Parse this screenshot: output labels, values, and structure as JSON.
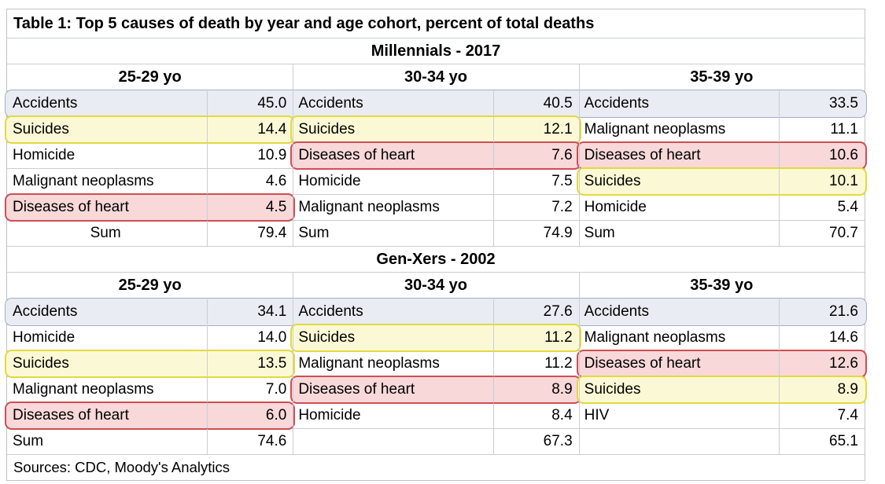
{
  "title": "Table 1: Top 5 causes of death by year and age cohort, percent of total deaths",
  "footer": "Sources: CDC, Moody's Analytics",
  "colors": {
    "accidents_highlight_fill": "#e9ecf2",
    "accidents_highlight_border": "#9fb0cd",
    "suicides_highlight_fill": "#fbf9d5",
    "suicides_highlight_border": "#e3d940",
    "heart_highlight_fill": "#f8d8d9",
    "heart_highlight_border": "#ce4f54",
    "gridline": "#c9cdd2"
  },
  "chart_data": {
    "type": "table",
    "title": "Table 1: Top 5 causes of death by year and age cohort, percent of total deaths",
    "units": "percent of total deaths",
    "sources": "Sources: CDC, Moody's Analytics",
    "sections": [
      {
        "label": "Millennials - 2017",
        "groups": [
          {
            "age": "25-29 yo",
            "rows": [
              {
                "cause": "Accidents",
                "value": "45.0",
                "highlight": "blue"
              },
              {
                "cause": "Suicides",
                "value": "14.4",
                "highlight": "yellow"
              },
              {
                "cause": "Homicide",
                "value": "10.9"
              },
              {
                "cause": "Malignant neoplasms",
                "value": "4.6"
              },
              {
                "cause": "Diseases of heart",
                "value": "4.5",
                "highlight": "red"
              }
            ],
            "sum": {
              "label": "Sum",
              "value": "79.4",
              "align": "center"
            }
          },
          {
            "age": "30-34 yo",
            "rows": [
              {
                "cause": "Accidents",
                "value": "40.5",
                "highlight": "blue"
              },
              {
                "cause": "Suicides",
                "value": "12.1",
                "highlight": "yellow"
              },
              {
                "cause": "Diseases of heart",
                "value": "7.6",
                "highlight": "red"
              },
              {
                "cause": "Homicide",
                "value": "7.5"
              },
              {
                "cause": "Malignant neoplasms",
                "value": "7.2"
              }
            ],
            "sum": {
              "label": "Sum",
              "value": "74.9",
              "align": "left"
            }
          },
          {
            "age": "35-39 yo",
            "rows": [
              {
                "cause": "Accidents",
                "value": "33.5",
                "highlight": "blue"
              },
              {
                "cause": "Malignant neoplasms",
                "value": "11.1"
              },
              {
                "cause": "Diseases of heart",
                "value": "10.6",
                "highlight": "red"
              },
              {
                "cause": "Suicides",
                "value": "10.1",
                "highlight": "yellow"
              },
              {
                "cause": "Homicide",
                "value": "5.4"
              }
            ],
            "sum": {
              "label": "Sum",
              "value": "70.7",
              "align": "left"
            }
          }
        ]
      },
      {
        "label": "Gen-Xers - 2002",
        "groups": [
          {
            "age": "25-29 yo",
            "rows": [
              {
                "cause": "Accidents",
                "value": "34.1",
                "highlight": "blue"
              },
              {
                "cause": "Homicide",
                "value": "14.0"
              },
              {
                "cause": "Suicides",
                "value": "13.5",
                "highlight": "yellow"
              },
              {
                "cause": "Malignant neoplasms",
                "value": "7.0"
              },
              {
                "cause": "Diseases of heart",
                "value": "6.0",
                "highlight": "red"
              }
            ],
            "sum": {
              "label": "Sum",
              "value": "74.6",
              "align": "left"
            }
          },
          {
            "age": "30-34 yo",
            "rows": [
              {
                "cause": "Accidents",
                "value": "27.6",
                "highlight": "blue"
              },
              {
                "cause": "Suicides",
                "value": "11.2",
                "highlight": "yellow"
              },
              {
                "cause": "Malignant neoplasms",
                "value": "11.2"
              },
              {
                "cause": "Diseases of heart",
                "value": "8.9",
                "highlight": "red"
              },
              {
                "cause": "Homicide",
                "value": "8.4"
              }
            ],
            "sum": {
              "label": "",
              "value": "67.3",
              "align": "left"
            }
          },
          {
            "age": "35-39 yo",
            "rows": [
              {
                "cause": "Accidents",
                "value": "21.6",
                "highlight": "blue"
              },
              {
                "cause": "Malignant neoplasms",
                "value": "14.6"
              },
              {
                "cause": "Diseases of heart",
                "value": "12.6",
                "highlight": "red"
              },
              {
                "cause": "Suicides",
                "value": "8.9",
                "highlight": "yellow"
              },
              {
                "cause": "HIV",
                "value": "7.4"
              }
            ],
            "sum": {
              "label": "",
              "value": "65.1",
              "align": "left"
            }
          }
        ]
      }
    ]
  }
}
